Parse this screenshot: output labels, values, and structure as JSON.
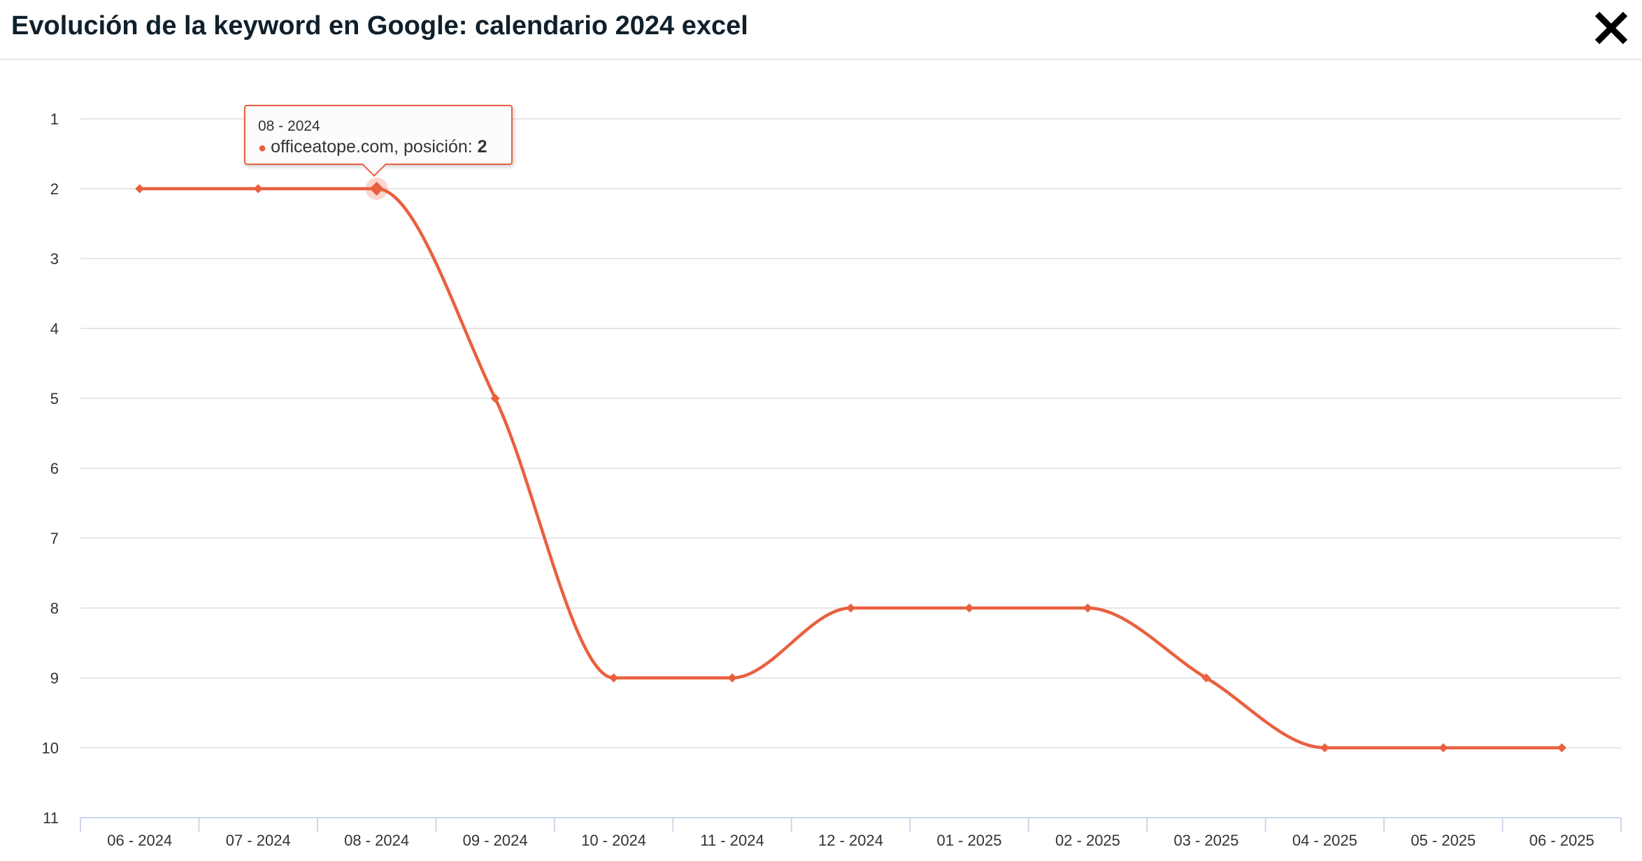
{
  "header": {
    "title": "Evolución de la keyword en Google: calendario 2024 excel",
    "close_icon": "close-icon"
  },
  "colors": {
    "series": "#e9603f",
    "grid": "#e6e6e6",
    "axis": "#ccd6eb",
    "text": "#333333"
  },
  "tooltip": {
    "date": "08 - 2024",
    "series_name": "officeatope.com",
    "value_label": ", posición: ",
    "value": "2"
  },
  "chart_data": {
    "type": "line",
    "title": "",
    "ylabel": "",
    "xlabel": "",
    "categories": [
      "06 - 2024",
      "07 - 2024",
      "08 - 2024",
      "09 - 2024",
      "10 - 2024",
      "11 - 2024",
      "12 - 2024",
      "01 - 2025",
      "02 - 2025",
      "03 - 2025",
      "04 - 2025",
      "05 - 2025",
      "06 - 2025"
    ],
    "series": [
      {
        "name": "officeatope.com",
        "values": [
          2,
          2,
          2,
          5,
          9,
          9,
          8,
          8,
          8,
          9,
          10,
          10,
          10
        ]
      }
    ],
    "y_axis": {
      "min": 1,
      "max": 11,
      "reversed": true,
      "ticks": [
        1,
        2,
        3,
        4,
        5,
        6,
        7,
        8,
        9,
        10,
        11
      ]
    },
    "grid": true,
    "legend": "none",
    "highlighted_point": {
      "category": "08 - 2024",
      "value": 2
    }
  }
}
